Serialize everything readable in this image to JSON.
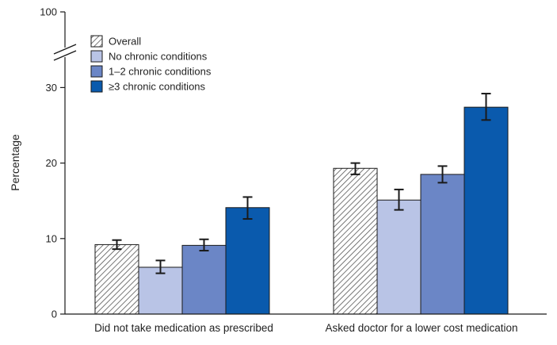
{
  "chart_data": {
    "type": "bar",
    "title": "",
    "xlabel": "",
    "ylabel": "Percentage",
    "ylim": [
      0,
      100
    ],
    "axis_break": {
      "visible_range": [
        0,
        35
      ],
      "jump_to": 100
    },
    "yticks": [
      0,
      10,
      20,
      30,
      100
    ],
    "grid": false,
    "legend_position": "top-left",
    "categories": [
      "Did not take medication as prescribed",
      "Asked doctor for a lower cost medication"
    ],
    "series": [
      {
        "name": "Overall",
        "color": "#ffffff",
        "pattern": "diagonal-hatch",
        "values": [
          9.2,
          19.3
        ],
        "ci_low": [
          8.6,
          18.5
        ],
        "ci_high": [
          9.8,
          20.0
        ]
      },
      {
        "name": "No chronic conditions",
        "color": "#b9c4e6",
        "values": [
          6.2,
          15.1
        ],
        "ci_low": [
          5.4,
          13.8
        ],
        "ci_high": [
          7.1,
          16.5
        ]
      },
      {
        "name": "1–2 chronic conditions",
        "color": "#6b86c6",
        "values": [
          9.1,
          18.5
        ],
        "ci_low": [
          8.4,
          17.4
        ],
        "ci_high": [
          9.9,
          19.6
        ]
      },
      {
        "name": "≥3 chronic conditions",
        "color": "#0a5aad",
        "values": [
          14.1,
          27.4
        ],
        "ci_low": [
          12.6,
          25.7
        ],
        "ci_high": [
          15.5,
          29.2
        ]
      }
    ]
  }
}
